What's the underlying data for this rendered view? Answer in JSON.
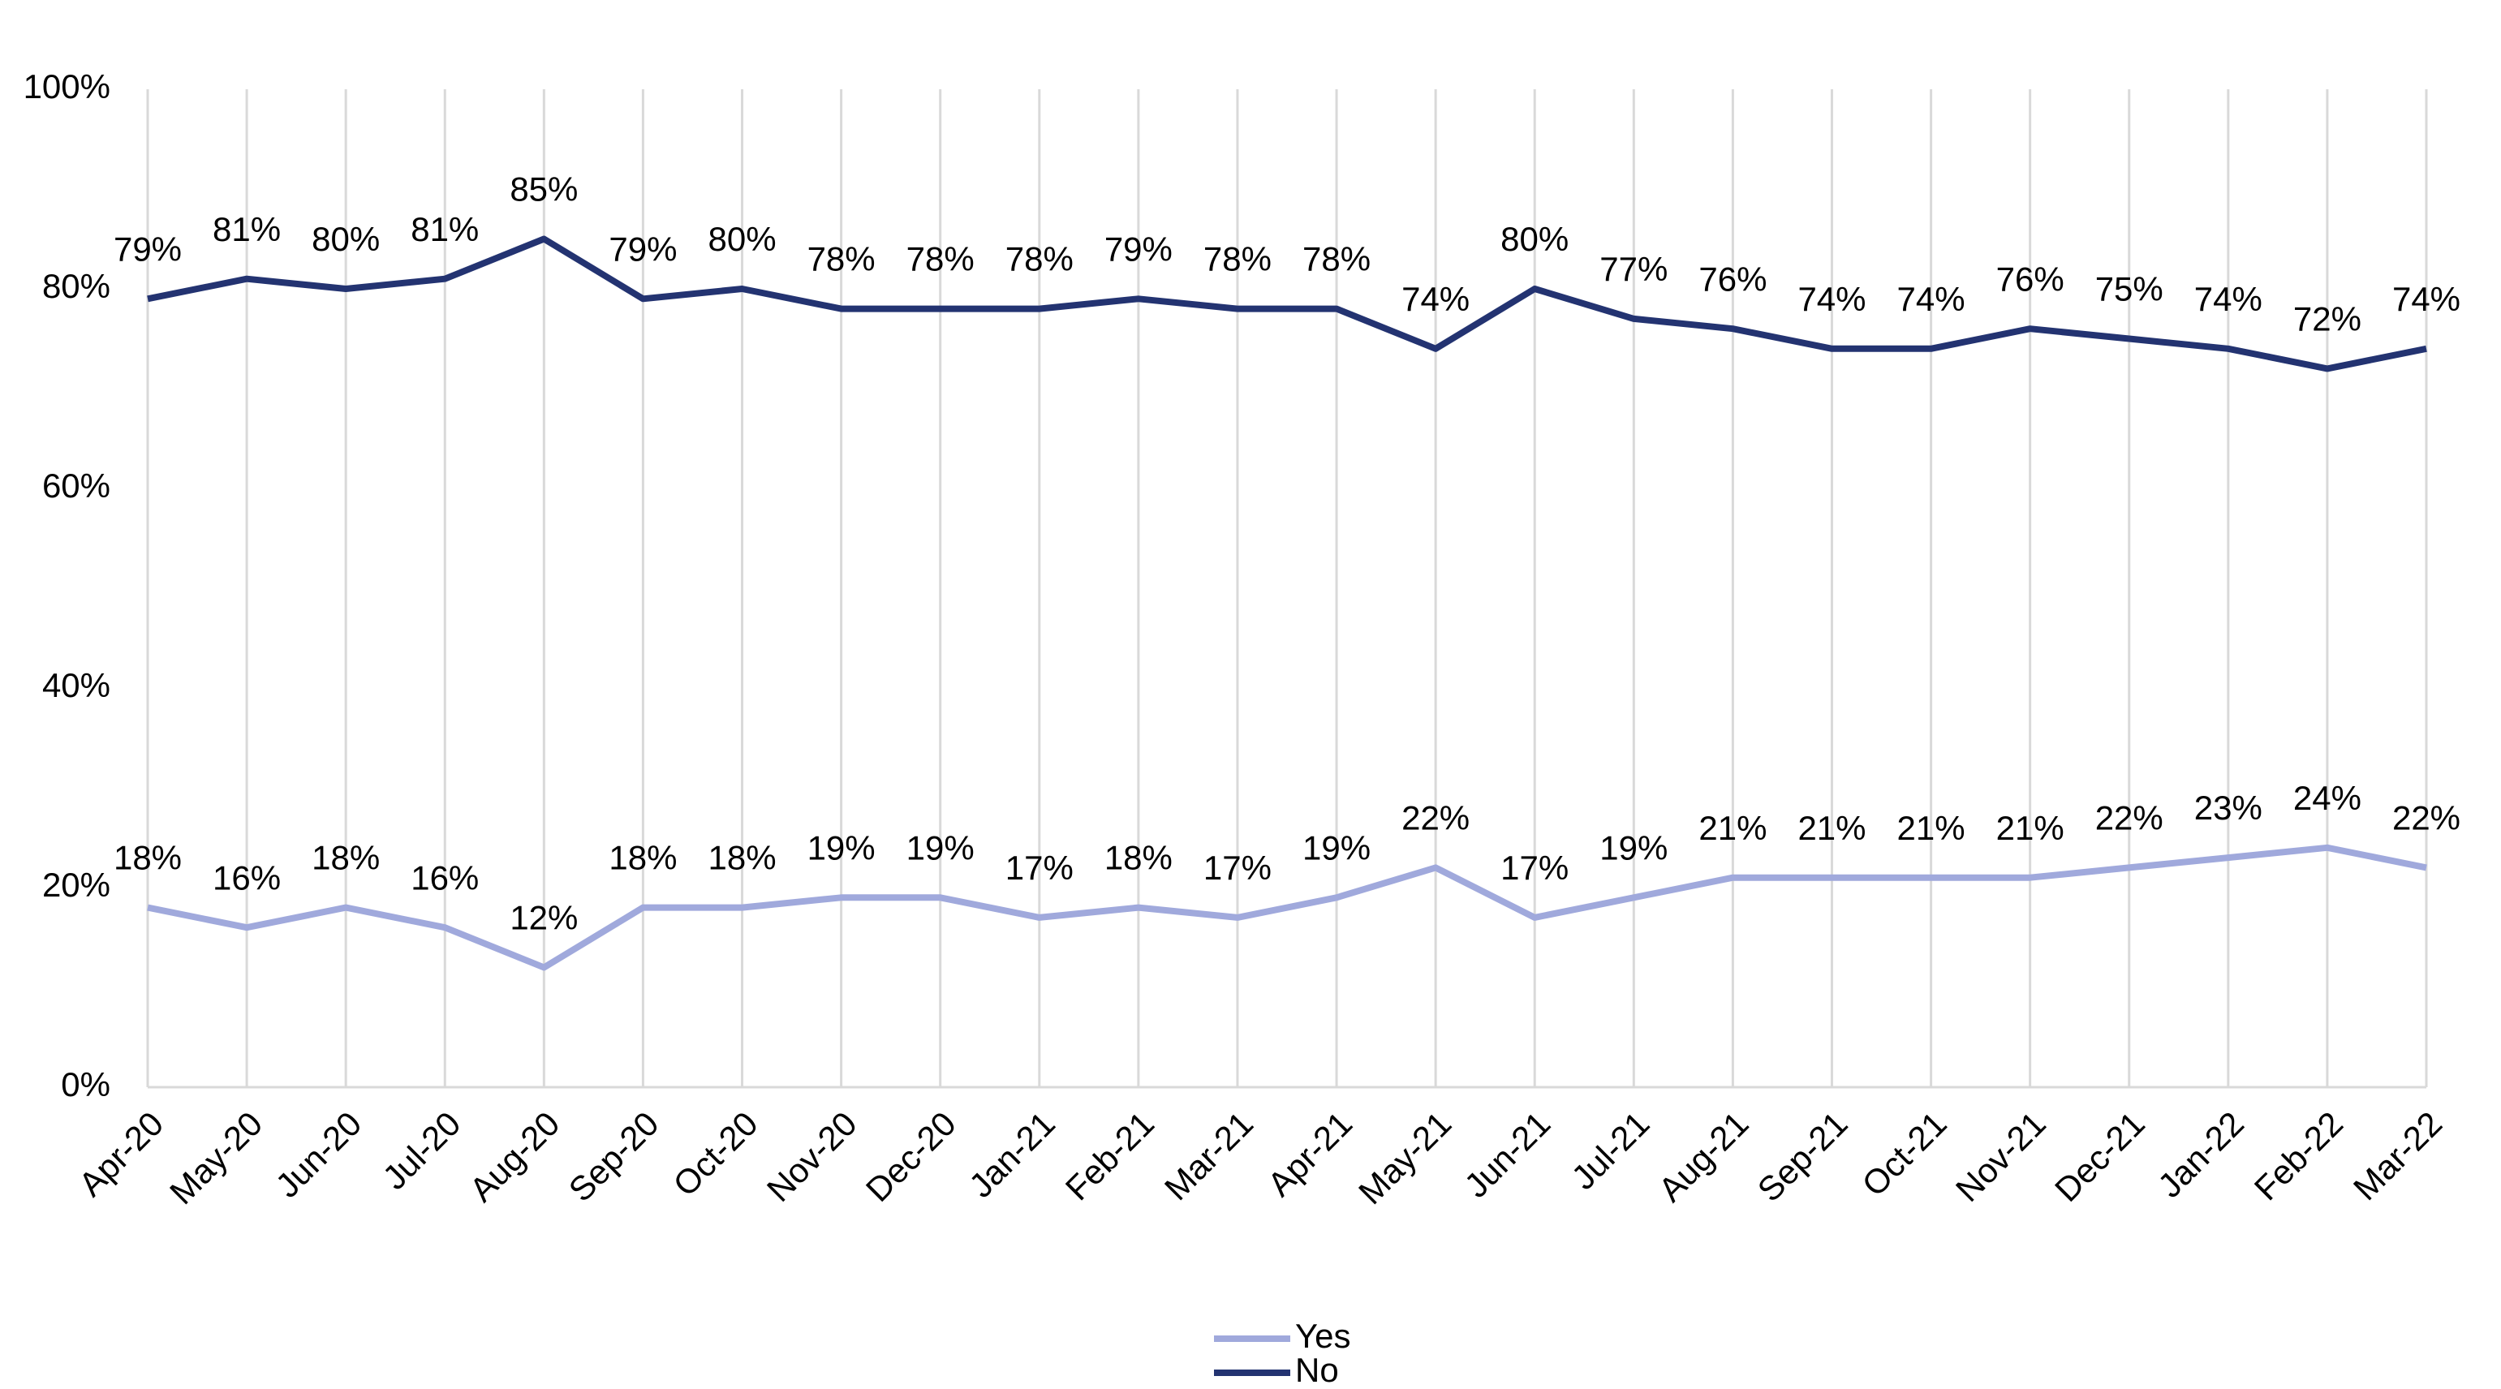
{
  "chart_data": {
    "type": "line",
    "categories": [
      "Apr-20",
      "May-20",
      "Jun-20",
      "Jul-20",
      "Aug-20",
      "Sep-20",
      "Oct-20",
      "Nov-20",
      "Dec-20",
      "Jan-21",
      "Feb-21",
      "Mar-21",
      "Apr-21",
      "May-21",
      "Jun-21",
      "Jul-21",
      "Aug-21",
      "Sep-21",
      "Oct-21",
      "Nov-21",
      "Dec-21",
      "Jan-22",
      "Feb-22",
      "Mar-22"
    ],
    "series": [
      {
        "name": "Yes",
        "color": "#a0a9dc",
        "values": [
          18,
          16,
          18,
          16,
          12,
          18,
          18,
          19,
          19,
          17,
          18,
          17,
          19,
          22,
          17,
          19,
          21,
          21,
          21,
          21,
          22,
          23,
          24,
          22
        ],
        "value_labels": [
          "18%",
          "16%",
          "18%",
          "16%",
          "12%",
          "18%",
          "18%",
          "19%",
          "19%",
          "17%",
          "18%",
          "17%",
          "19%",
          "22%",
          "17%",
          "19%",
          "21%",
          "21%",
          "21%",
          "21%",
          "22%",
          "23%",
          "24%",
          "22%"
        ]
      },
      {
        "name": "No",
        "color": "#233371",
        "values": [
          79,
          81,
          80,
          81,
          85,
          79,
          80,
          78,
          78,
          78,
          79,
          78,
          78,
          74,
          80,
          77,
          76,
          74,
          74,
          76,
          75,
          74,
          72,
          74
        ],
        "value_labels": [
          "79%",
          "81%",
          "80%",
          "81%",
          "85%",
          "79%",
          "80%",
          "78%",
          "78%",
          "78%",
          "79%",
          "78%",
          "78%",
          "74%",
          "80%",
          "77%",
          "76%",
          "74%",
          "74%",
          "76%",
          "75%",
          "74%",
          "72%",
          "74%"
        ]
      }
    ],
    "ylim": [
      0,
      100
    ],
    "yticks": [
      {
        "value": 0,
        "label": "0%"
      },
      {
        "value": 20,
        "label": "20%"
      },
      {
        "value": 40,
        "label": "40%"
      },
      {
        "value": 60,
        "label": "60%"
      },
      {
        "value": 80,
        "label": "80%"
      },
      {
        "value": 100,
        "label": "100%"
      }
    ],
    "grid": true,
    "legend": "bottom"
  }
}
